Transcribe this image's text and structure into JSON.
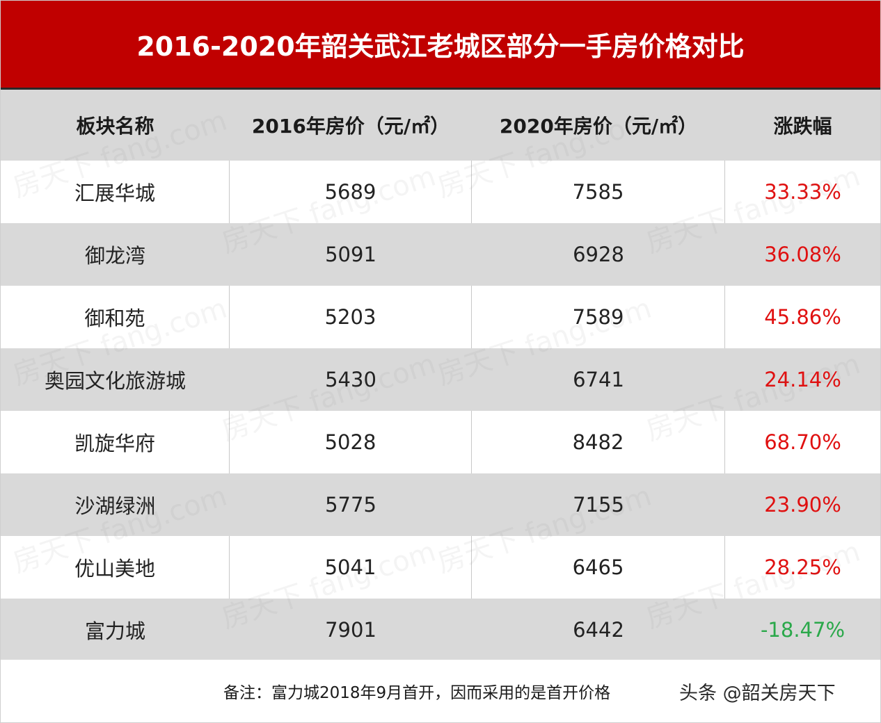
{
  "title": "2016-2020年韶关武江老城区部分一手房价格对比",
  "table": {
    "headers": [
      "板块名称",
      "2016年房价（元/㎡）",
      "2020年房价（元/㎡）",
      "涨跌幅"
    ],
    "rows": [
      {
        "name": "汇展华城",
        "price_2016": "5689",
        "price_2020": "7585",
        "change": "33.33%"
      },
      {
        "name": "御龙湾",
        "price_2016": "5091",
        "price_2020": "6928",
        "change": "36.08%"
      },
      {
        "name": "御和苑",
        "price_2016": "5203",
        "price_2020": "7589",
        "change": "45.86%"
      },
      {
        "name": "奥园文化旅游城",
        "price_2016": "5430",
        "price_2020": "6741",
        "change": "24.14%"
      },
      {
        "name": "凯旋华府",
        "price_2016": "5028",
        "price_2020": "8482",
        "change": "68.70%"
      },
      {
        "name": "沙湖绿洲",
        "price_2016": "5775",
        "price_2020": "7155",
        "change": "23.90%"
      },
      {
        "name": "优山美地",
        "price_2016": "5041",
        "price_2020": "6465",
        "change": "28.25%"
      },
      {
        "name": "富力城",
        "price_2016": "7901",
        "price_2020": "6442",
        "change": "-18.47%"
      }
    ]
  },
  "footer": {
    "note": "备注：富力城2018年9月首开，因而采用的是首开价格",
    "credit": "头条 @韶关房天下"
  },
  "watermark": {
    "text": "房天下 fang.com"
  },
  "colors": {
    "title_bg": "#c00000",
    "increase": "#e01010",
    "decrease": "#2aa84a",
    "stripe": "#d9d9d9"
  }
}
